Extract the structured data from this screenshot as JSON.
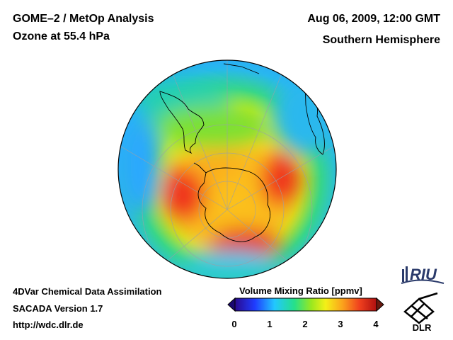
{
  "header": {
    "title": "GOME–2 / MetOp Analysis",
    "subtitle": "Ozone at 55.4 hPa",
    "datetime": "Aug 06, 2009, 12:00 GMT",
    "hemisphere": "Southern Hemisphere"
  },
  "footer": {
    "line1": "4DVar Chemical Data Assimilation",
    "line2": "SACADA Version 1.7",
    "line3": "http://wdc.dlr.de"
  },
  "colorbar": {
    "title": "Volume Mixing Ratio [ppmv]",
    "ticks": [
      "0",
      "1",
      "2",
      "3",
      "4"
    ],
    "min": 0,
    "max": 4,
    "colors": [
      "#2a0a8f",
      "#1f3cff",
      "#22c8ff",
      "#25e08a",
      "#9be81e",
      "#f4f018",
      "#fba21c",
      "#f0401e",
      "#b01010"
    ]
  },
  "logos": {
    "riu": "RIU",
    "dlr": "DLR"
  }
}
